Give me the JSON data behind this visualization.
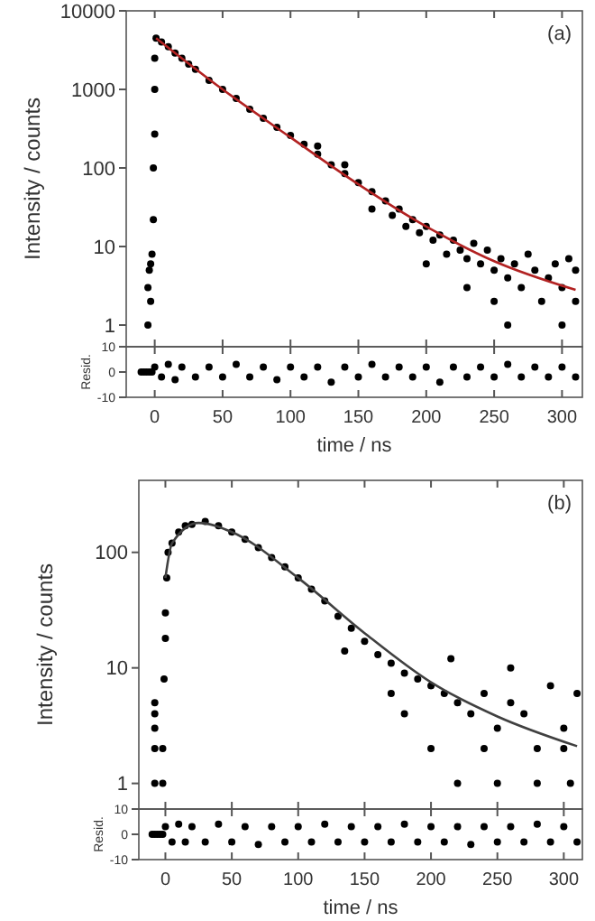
{
  "chart_data": [
    {
      "type": "scatter",
      "ylabel": "Intensity / counts",
      "annotations": [
        "(a)"
      ],
      "log": "y",
      "xlim": [
        -21,
        315
      ],
      "xticks": [
        0,
        50,
        100,
        150,
        200,
        250,
        300
      ],
      "ylim": [
        0.53,
        10000
      ],
      "yticks": [
        1,
        10,
        100,
        1000,
        10000
      ],
      "tick_labels": "y",
      "grid": false,
      "series": [
        {
          "marker": "circle",
          "color": "#000000",
          "x": [
            -5,
            -5,
            -4,
            -3,
            -3,
            -2,
            -1,
            -1,
            0,
            0,
            0,
            1,
            5,
            10,
            15,
            20,
            25,
            30,
            40,
            50,
            60,
            70,
            80,
            90,
            100,
            110,
            120,
            130,
            140,
            150,
            160,
            170,
            175,
            180,
            185,
            190,
            195,
            200,
            205,
            210,
            215,
            220,
            225,
            230,
            235,
            240,
            245,
            250,
            255,
            260,
            260,
            265,
            270,
            275,
            280,
            285,
            290,
            295,
            300,
            300,
            305,
            310,
            310,
            200,
            230,
            250,
            160,
            140,
            120
          ],
          "values": [
            1,
            3,
            5,
            2,
            6,
            8,
            22,
            100,
            270,
            1000,
            2500,
            4500,
            4000,
            3500,
            2900,
            2500,
            2100,
            1800,
            1300,
            1000,
            770,
            560,
            430,
            330,
            260,
            200,
            150,
            110,
            85,
            65,
            50,
            38,
            25,
            30,
            18,
            22,
            15,
            18,
            12,
            14,
            8,
            12,
            9,
            7,
            11,
            6,
            9,
            5,
            7,
            4,
            1,
            6,
            3,
            8,
            5,
            2,
            4,
            6,
            1,
            3,
            7,
            5,
            2,
            6,
            3,
            2,
            30,
            110,
            190
          ]
        },
        {
          "type": "line",
          "color": "#b22222",
          "x": [
            1,
            50,
            100,
            150,
            200,
            250,
            310
          ],
          "values": [
            4500,
            1000,
            245,
            62,
            18,
            6.5,
            2.8
          ]
        }
      ]
    },
    {
      "type": "scatter",
      "xlabel": "time / ns",
      "ylabel": "Resid.",
      "xlim": [
        -21,
        315
      ],
      "xticks": [
        0,
        50,
        100,
        150,
        200,
        250,
        300
      ],
      "ylim": [
        -10,
        10
      ],
      "yticks": [
        -10,
        0,
        10
      ],
      "grid": false,
      "series": [
        {
          "marker": "circle",
          "color": "#000000",
          "x": [
            -10,
            -8,
            -6,
            -4,
            -2,
            0,
            5,
            10,
            15,
            20,
            30,
            40,
            50,
            60,
            70,
            80,
            90,
            100,
            110,
            120,
            130,
            140,
            150,
            160,
            170,
            180,
            190,
            200,
            210,
            220,
            230,
            240,
            250,
            260,
            270,
            280,
            290,
            300,
            310
          ],
          "values": [
            0,
            0,
            0,
            0,
            0,
            2,
            -2,
            3,
            -3,
            2,
            -2,
            2,
            -2,
            3,
            -2,
            2,
            -3,
            2,
            -2,
            2,
            -4,
            2,
            -2,
            3,
            -2,
            2,
            -2,
            2,
            -4,
            2,
            -2,
            2,
            -2,
            3,
            -2,
            2,
            -2,
            2,
            -2
          ]
        }
      ]
    },
    {
      "type": "scatter",
      "ylabel": "Intensity / counts",
      "annotations": [
        "(b)"
      ],
      "log": "y",
      "xlim": [
        -20,
        314
      ],
      "xticks": [
        0,
        50,
        100,
        150,
        200,
        250,
        300
      ],
      "ylim": [
        0.6,
        420
      ],
      "yticks": [
        1,
        10,
        100
      ],
      "tick_labels": "y",
      "grid": false,
      "series": [
        {
          "marker": "circle",
          "color": "#000000",
          "x": [
            -8,
            -8,
            -8,
            -8,
            -8,
            -2,
            -2,
            -1,
            0,
            0,
            1,
            2,
            5,
            10,
            15,
            20,
            30,
            40,
            50,
            60,
            70,
            80,
            90,
            100,
            110,
            120,
            130,
            140,
            135,
            150,
            160,
            170,
            180,
            190,
            200,
            210,
            215,
            220,
            230,
            240,
            250,
            260,
            270,
            280,
            290,
            300,
            310,
            200,
            220,
            250,
            280,
            305,
            180,
            170,
            240,
            260,
            300
          ],
          "values": [
            1,
            2,
            3,
            4,
            5,
            1,
            2,
            8,
            18,
            30,
            60,
            100,
            120,
            150,
            170,
            175,
            185,
            170,
            150,
            130,
            110,
            90,
            75,
            60,
            48,
            38,
            28,
            22,
            14,
            17,
            13,
            11,
            9,
            8,
            7,
            6,
            12,
            5,
            4,
            6,
            3,
            5,
            4,
            2,
            7,
            3,
            6,
            2,
            1,
            1,
            1,
            1,
            4,
            6,
            2,
            10,
            2
          ]
        },
        {
          "type": "line",
          "color": "#404040",
          "x": [
            0,
            5,
            25,
            50,
            100,
            150,
            200,
            250,
            310
          ],
          "values": [
            60,
            120,
            180,
            150,
            60,
            20,
            7.5,
            3.8,
            2.1
          ]
        }
      ]
    },
    {
      "type": "scatter",
      "xlabel": "time / ns",
      "ylabel": "Resid.",
      "xlim": [
        -20,
        314
      ],
      "xticks": [
        0,
        50,
        100,
        150,
        200,
        250,
        300
      ],
      "ylim": [
        -10,
        10
      ],
      "yticks": [
        -10,
        0,
        10
      ],
      "grid": false,
      "series": [
        {
          "marker": "circle",
          "color": "#000000",
          "x": [
            -10,
            -8,
            -6,
            -4,
            -2,
            0,
            5,
            10,
            15,
            20,
            30,
            40,
            50,
            60,
            70,
            80,
            90,
            100,
            110,
            120,
            130,
            140,
            150,
            160,
            170,
            180,
            190,
            200,
            210,
            220,
            230,
            240,
            250,
            260,
            270,
            280,
            290,
            300,
            310
          ],
          "values": [
            0,
            0,
            0,
            0,
            0,
            3,
            -3,
            4,
            -3,
            3,
            -3,
            4,
            -3,
            3,
            -4,
            3,
            -3,
            3,
            -3,
            4,
            -3,
            3,
            -3,
            3,
            -3,
            4,
            -3,
            3,
            -3,
            3,
            -4,
            3,
            -3,
            3,
            -3,
            4,
            -3,
            3,
            -3
          ]
        }
      ]
    }
  ]
}
